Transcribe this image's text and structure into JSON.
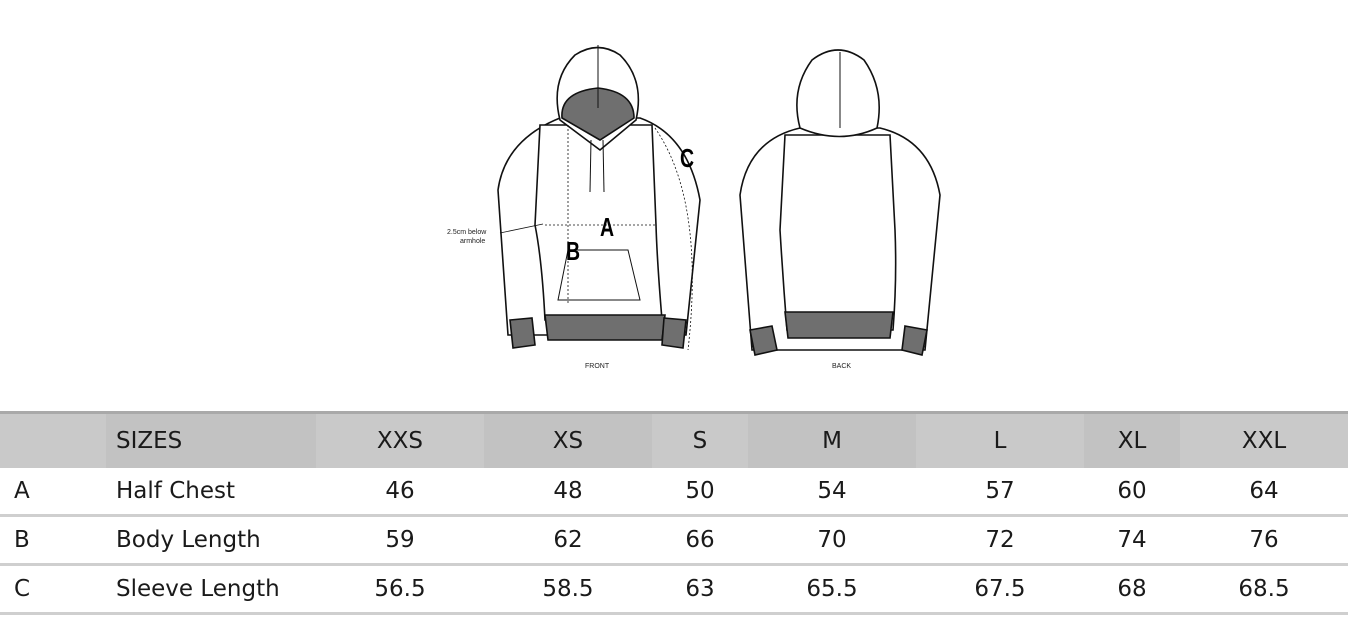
{
  "figure": {
    "front_label": "FRONT",
    "back_label": "BACK",
    "annotation": [
      "2.5cm below",
      "armhole"
    ],
    "markers": {
      "a": "A",
      "b": "B",
      "c": "C"
    }
  },
  "table": {
    "header": [
      "",
      "SIZES",
      "XXS",
      "XS",
      "S",
      "M",
      "L",
      "XL",
      "XXL"
    ],
    "rows": [
      {
        "key": "A",
        "label": "Half Chest",
        "values": [
          "46",
          "48",
          "50",
          "54",
          "57",
          "60",
          "64"
        ]
      },
      {
        "key": "B",
        "label": "Body Length",
        "values": [
          "59",
          "62",
          "66",
          "70",
          "72",
          "74",
          "76"
        ]
      },
      {
        "key": "C",
        "label": "Sleeve Length",
        "values": [
          "56.5",
          "58.5",
          "63",
          "65.5",
          "67.5",
          "68",
          "68.5"
        ]
      }
    ]
  },
  "colors": {
    "header_bg": "#c9c9c9",
    "rib_grey": "#6f6f6f"
  }
}
